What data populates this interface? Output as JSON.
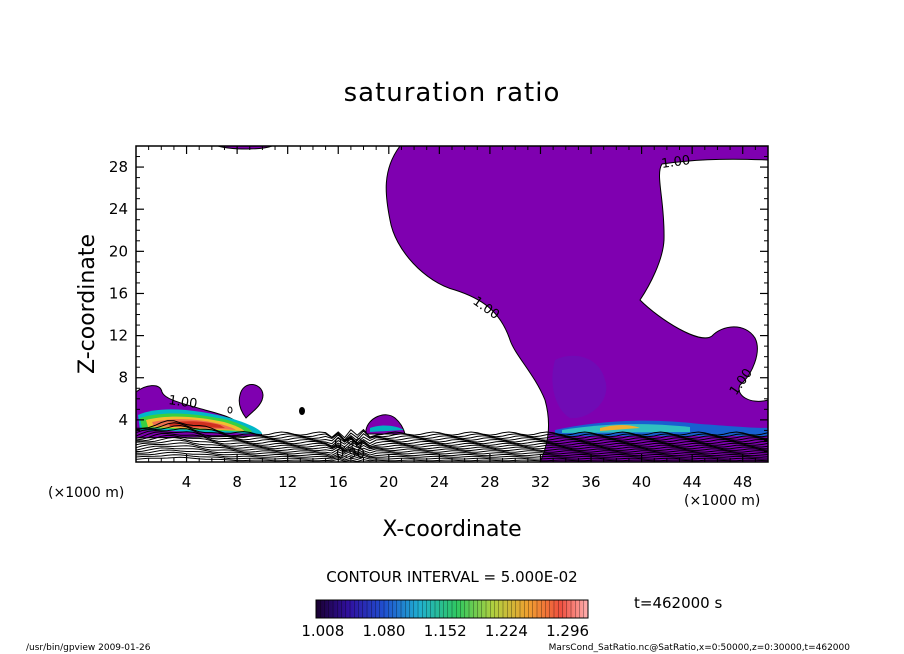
{
  "chart_data": {
    "type": "contour",
    "title": "saturation ratio",
    "xlabel": "X-coordinate",
    "ylabel": "Z-coordinate",
    "x_unit_left": "(×1000 m)",
    "x_unit_right": "(×1000 m)",
    "xlim": [
      0,
      50
    ],
    "ylim": [
      0,
      30
    ],
    "x_ticks": [
      4,
      8,
      12,
      16,
      20,
      24,
      28,
      32,
      36,
      40,
      44,
      48
    ],
    "y_ticks": [
      4,
      8,
      12,
      16,
      20,
      24,
      28
    ],
    "contour_interval_text": "CONTOUR INTERVAL = 5.000E-02",
    "contour_labels": [
      "1.00",
      "1.00",
      "1.00",
      "1.00",
      "0.90",
      "0.90"
    ],
    "colorbar_ticks": [
      "1.008",
      "1.080",
      "1.152",
      "1.224",
      "1.296"
    ],
    "colorbar_range": [
      1.0,
      1.32
    ],
    "time_label": "t=462000 s",
    "fill_color": "#7f00b0",
    "grid": false
  },
  "footer": {
    "left": "/usr/bin/gpview   2009-01-26",
    "right": "MarsCond_SatRatio.nc@SatRatio,x=0:50000,z=0:30000,t=462000"
  }
}
